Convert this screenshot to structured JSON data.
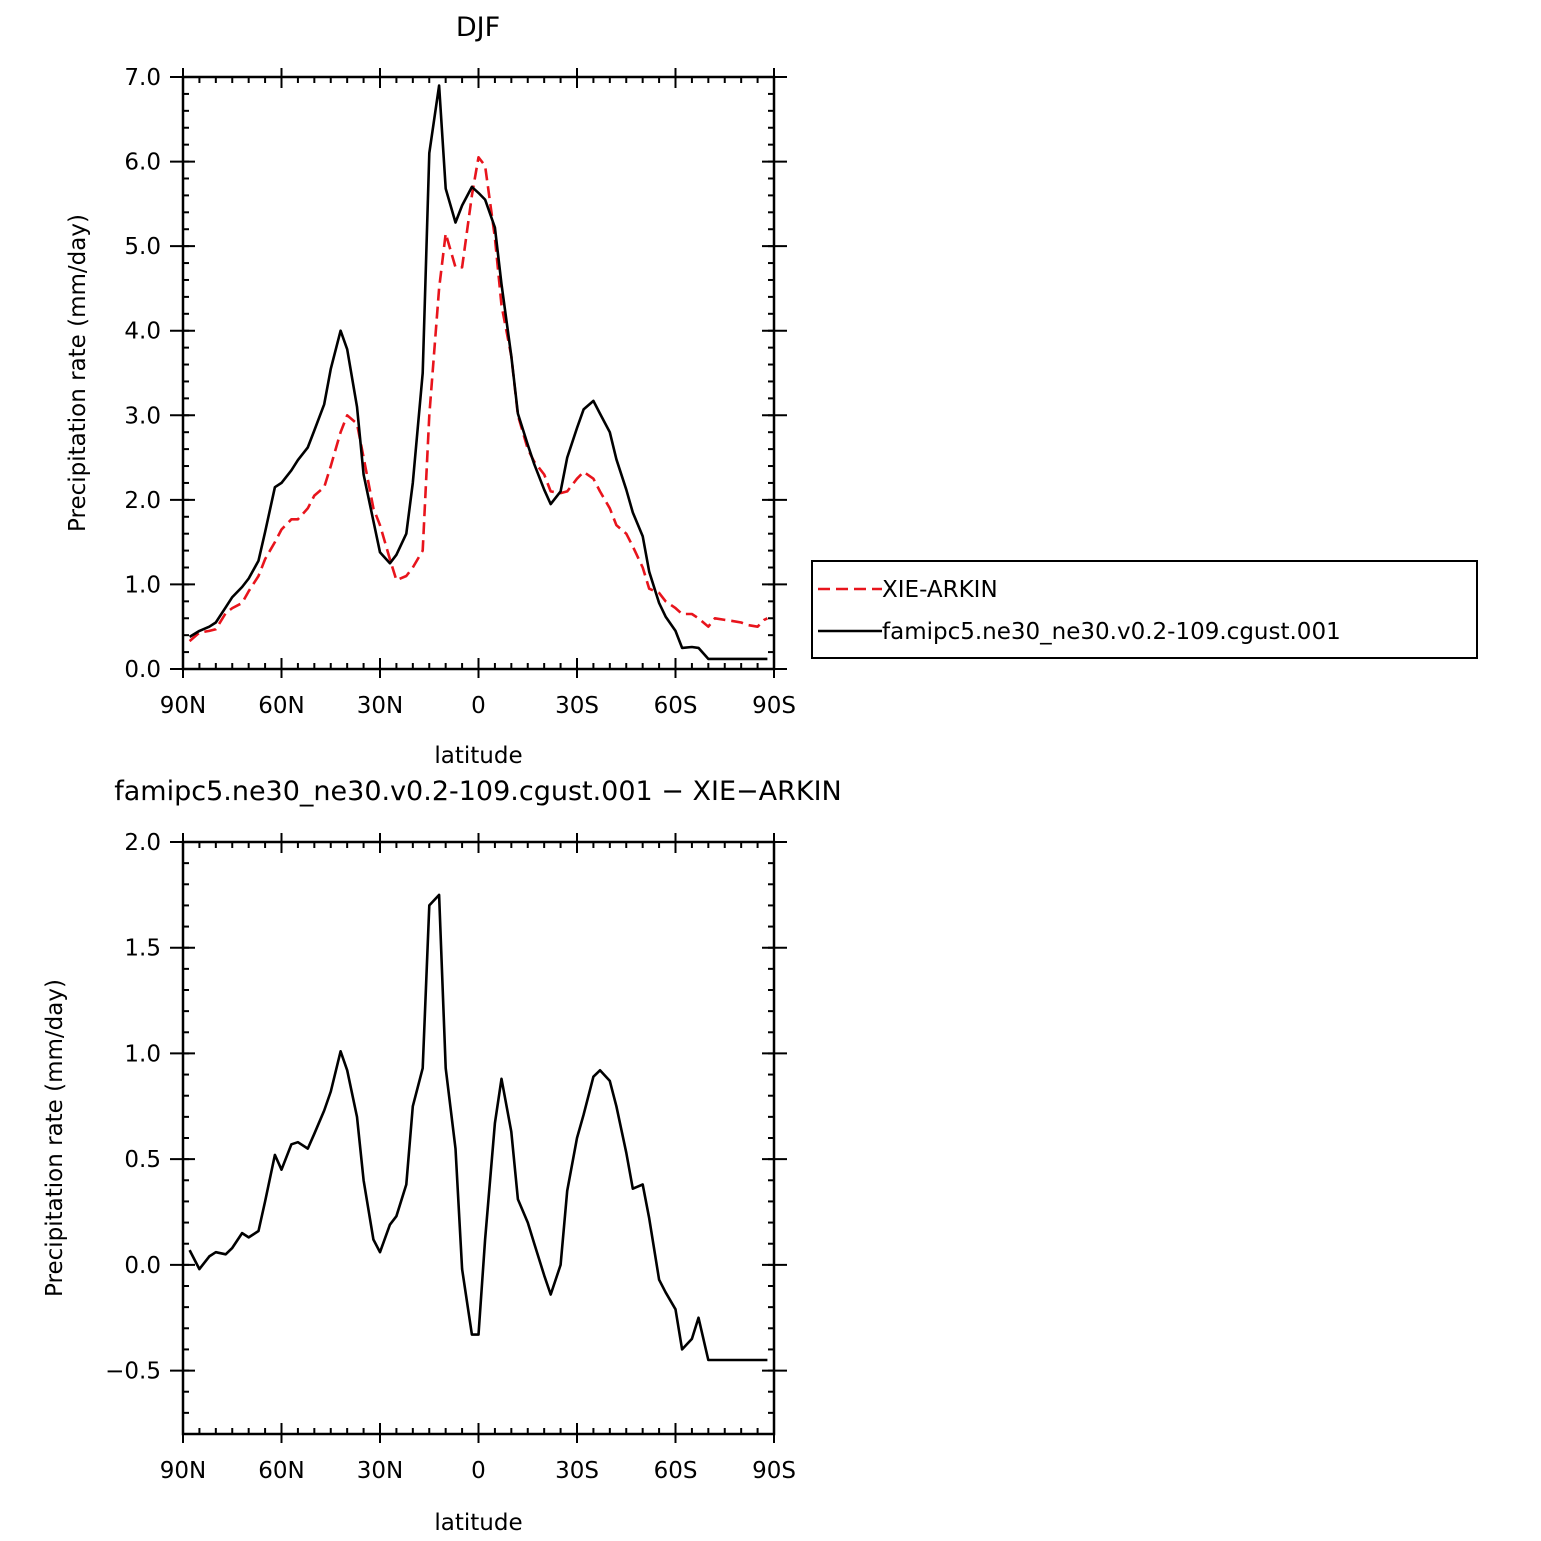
{
  "colors": {
    "observed": "#e8141c",
    "model": "#000000",
    "axis": "#000000",
    "background": "#ffffff"
  },
  "chart_data": [
    {
      "type": "line",
      "title": "DJF",
      "xlabel": "latitude",
      "ylabel": "Precipitation rate (mm/day)",
      "xlim": [
        -90,
        90
      ],
      "ylim": [
        0,
        7
      ],
      "x_direction": "north-to-south",
      "x_ticks": [
        {
          "value": -90,
          "label": "90N"
        },
        {
          "value": -60,
          "label": "60N"
        },
        {
          "value": -30,
          "label": "30N"
        },
        {
          "value": 0,
          "label": "0"
        },
        {
          "value": 30,
          "label": "30S"
        },
        {
          "value": 60,
          "label": "60S"
        },
        {
          "value": 90,
          "label": "90S"
        }
      ],
      "y_ticks": [
        {
          "value": 0,
          "label": "0.0"
        },
        {
          "value": 1,
          "label": "1.0"
        },
        {
          "value": 2,
          "label": "2.0"
        },
        {
          "value": 3,
          "label": "3.0"
        },
        {
          "value": 4,
          "label": "4.0"
        },
        {
          "value": 5,
          "label": "5.0"
        },
        {
          "value": 6,
          "label": "6.0"
        },
        {
          "value": 7,
          "label": "7.0"
        }
      ],
      "grid": false,
      "legend_position": "right",
      "series": [
        {
          "name": "XIE-ARKIN",
          "style": "dashed",
          "color": "#e8141c",
          "x": [
            -88,
            -85,
            -82,
            -80,
            -77,
            -75,
            -72,
            -70,
            -67,
            -65,
            -62,
            -60,
            -57,
            -55,
            -52,
            -50,
            -47,
            -45,
            -42,
            -40,
            -37,
            -35,
            -32,
            -30,
            -27,
            -25,
            -22,
            -20,
            -17,
            -15,
            -12,
            -10,
            -7,
            -5,
            -2,
            0,
            2,
            5,
            7,
            10,
            12,
            15,
            17,
            20,
            22,
            25,
            27,
            30,
            32,
            35,
            37,
            40,
            42,
            45,
            47,
            50,
            52,
            55,
            57,
            60,
            62,
            65,
            67,
            70,
            72,
            75,
            77,
            80,
            82,
            85,
            87,
            88
          ],
          "y": [
            0.33,
            0.43,
            0.45,
            0.47,
            0.66,
            0.72,
            0.78,
            0.92,
            1.1,
            1.3,
            1.5,
            1.65,
            1.77,
            1.77,
            1.9,
            2.05,
            2.15,
            2.4,
            2.8,
            3.0,
            2.9,
            2.5,
            1.9,
            1.7,
            1.3,
            1.05,
            1.1,
            1.2,
            1.4,
            3.0,
            4.5,
            5.15,
            4.75,
            4.75,
            5.6,
            6.05,
            5.95,
            5.1,
            4.3,
            3.7,
            3.0,
            2.6,
            2.45,
            2.3,
            2.1,
            2.08,
            2.1,
            2.25,
            2.33,
            2.25,
            2.1,
            1.9,
            1.7,
            1.6,
            1.45,
            1.2,
            0.95,
            0.9,
            0.8,
            0.72,
            0.65,
            0.65,
            0.6,
            0.5,
            0.6,
            0.58,
            0.57,
            0.55,
            0.52,
            0.5,
            0.58,
            0.6
          ]
        },
        {
          "name": "famipc5.ne30_ne30.v0.2-109.cgust.001",
          "style": "solid",
          "color": "#000000",
          "x": [
            -88,
            -85,
            -82,
            -80,
            -77,
            -75,
            -72,
            -70,
            -67,
            -65,
            -62,
            -60,
            -57,
            -55,
            -52,
            -50,
            -47,
            -45,
            -42,
            -40,
            -37,
            -35,
            -32,
            -30,
            -27,
            -25,
            -22,
            -20,
            -17,
            -15,
            -12,
            -10,
            -7,
            -5,
            -2,
            0,
            2,
            5,
            7,
            10,
            12,
            15,
            17,
            20,
            22,
            25,
            27,
            30,
            32,
            35,
            37,
            40,
            42,
            45,
            47,
            50,
            52,
            55,
            57,
            60,
            62,
            65,
            67,
            70,
            72,
            75,
            77,
            80,
            82,
            85,
            87,
            88
          ],
          "y": [
            0.38,
            0.45,
            0.5,
            0.55,
            0.73,
            0.85,
            0.97,
            1.07,
            1.28,
            1.62,
            2.15,
            2.2,
            2.35,
            2.47,
            2.62,
            2.82,
            3.13,
            3.55,
            4.0,
            3.78,
            3.1,
            2.3,
            1.75,
            1.38,
            1.25,
            1.35,
            1.6,
            2.2,
            3.5,
            6.1,
            6.9,
            5.68,
            5.28,
            5.48,
            5.7,
            5.63,
            5.55,
            5.22,
            4.55,
            3.7,
            3.02,
            2.65,
            2.42,
            2.12,
            1.95,
            2.1,
            2.5,
            2.85,
            3.07,
            3.17,
            3.02,
            2.8,
            2.48,
            2.12,
            1.85,
            1.57,
            1.15,
            0.78,
            0.62,
            0.45,
            0.25,
            0.26,
            0.25,
            0.12,
            0.12,
            0.12,
            0.12,
            0.12,
            0.12,
            0.12,
            0.12,
            0.12
          ]
        }
      ]
    },
    {
      "type": "line",
      "title": "famipc5.ne30_ne30.v0.2-109.cgust.001 − XIE−ARKIN",
      "xlabel": "latitude",
      "ylabel": "Precipitation rate (mm/day)",
      "xlim": [
        -90,
        90
      ],
      "ylim": [
        -0.8,
        2.0
      ],
      "x_direction": "north-to-south",
      "x_ticks": [
        {
          "value": -90,
          "label": "90N"
        },
        {
          "value": -60,
          "label": "60N"
        },
        {
          "value": -30,
          "label": "30N"
        },
        {
          "value": 0,
          "label": "0"
        },
        {
          "value": 30,
          "label": "30S"
        },
        {
          "value": 60,
          "label": "60S"
        },
        {
          "value": 90,
          "label": "90S"
        }
      ],
      "y_ticks": [
        {
          "value": -0.5,
          "label": "−0.5"
        },
        {
          "value": 0,
          "label": "0.0"
        },
        {
          "value": 0.5,
          "label": "0.5"
        },
        {
          "value": 1.0,
          "label": "1.0"
        },
        {
          "value": 1.5,
          "label": "1.5"
        },
        {
          "value": 2.0,
          "label": "2.0"
        }
      ],
      "grid": false,
      "series": [
        {
          "style": "solid",
          "color": "#000000",
          "x": [
            -88,
            -85,
            -82,
            -80,
            -77,
            -75,
            -72,
            -70,
            -67,
            -65,
            -62,
            -60,
            -57,
            -55,
            -52,
            -50,
            -47,
            -45,
            -42,
            -40,
            -37,
            -35,
            -32,
            -30,
            -27,
            -25,
            -22,
            -20,
            -17,
            -15,
            -12,
            -10,
            -7,
            -5,
            -2,
            0,
            2,
            5,
            7,
            10,
            12,
            15,
            17,
            20,
            22,
            25,
            27,
            30,
            32,
            35,
            37,
            40,
            42,
            45,
            47,
            50,
            52,
            55,
            57,
            60,
            62,
            65,
            67,
            70,
            72,
            75,
            77,
            80,
            82,
            85,
            87,
            88
          ],
          "y": [
            0.07,
            -0.02,
            0.04,
            0.06,
            0.05,
            0.08,
            0.15,
            0.13,
            0.16,
            0.3,
            0.52,
            0.45,
            0.57,
            0.58,
            0.55,
            0.62,
            0.73,
            0.82,
            1.01,
            0.92,
            0.7,
            0.4,
            0.12,
            0.06,
            0.19,
            0.23,
            0.38,
            0.75,
            0.93,
            1.7,
            1.75,
            0.93,
            0.55,
            -0.02,
            -0.33,
            -0.33,
            0.12,
            0.67,
            0.88,
            0.63,
            0.31,
            0.2,
            0.1,
            -0.05,
            -0.14,
            0.0,
            0.35,
            0.6,
            0.71,
            0.89,
            0.92,
            0.87,
            0.75,
            0.53,
            0.36,
            0.38,
            0.22,
            -0.07,
            -0.13,
            -0.21,
            -0.4,
            -0.35,
            -0.25,
            -0.45,
            -0.45,
            -0.45,
            -0.45,
            -0.45,
            -0.45,
            -0.45,
            -0.45,
            -0.45
          ]
        }
      ]
    }
  ]
}
